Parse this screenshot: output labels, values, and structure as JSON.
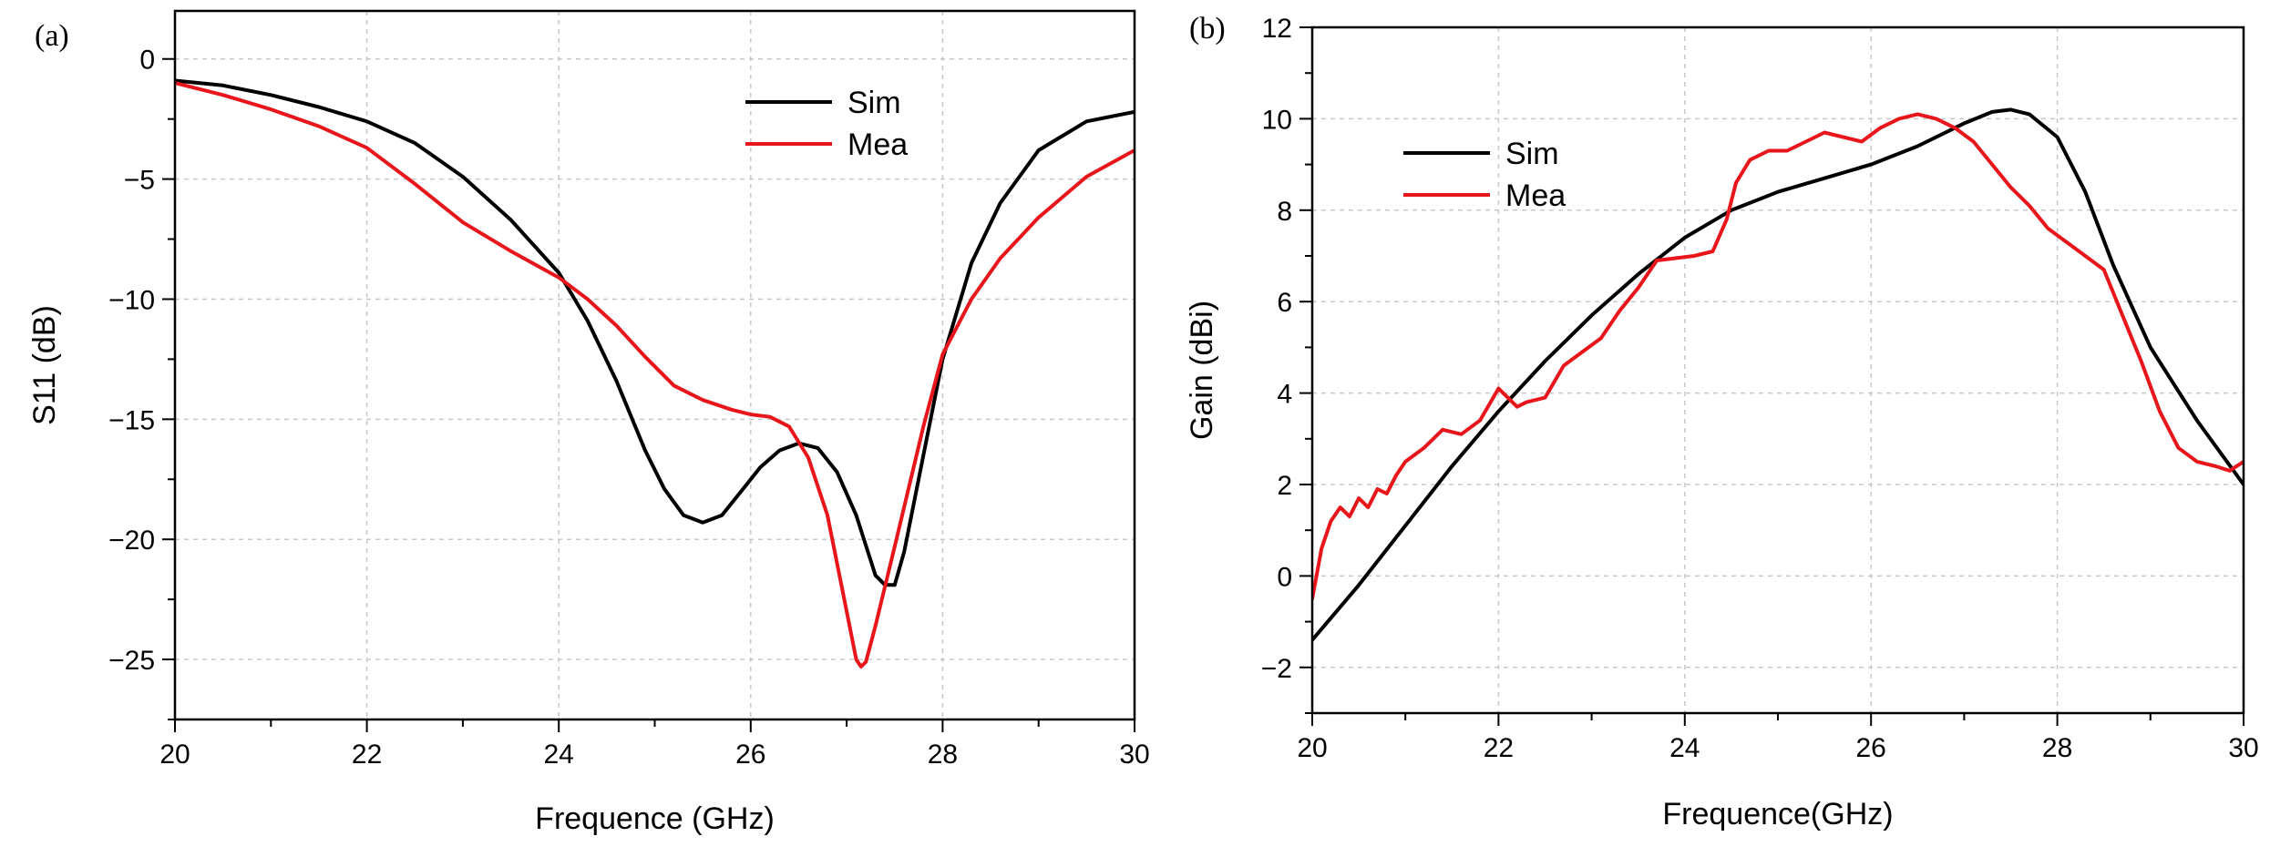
{
  "colors": {
    "sim": "#000000",
    "mea": "#e8161b"
  },
  "chart_data": [
    {
      "type": "line",
      "panel_label": "(a)",
      "xlabel": "Frequence (GHz)",
      "ylabel": "S11 (dB)",
      "xlim": [
        20,
        30
      ],
      "ylim": [
        -27.5,
        2
      ],
      "xticks": [
        20,
        22,
        24,
        26,
        28,
        30
      ],
      "xtick_labels": [
        "20",
        "22",
        "24",
        "26",
        "28",
        "30"
      ],
      "yticks": [
        0,
        -5,
        -10,
        -15,
        -20,
        -25
      ],
      "ytick_labels": [
        "0",
        "−5",
        "−10",
        "−15",
        "−20",
        "−25"
      ],
      "grid": true,
      "legend_position": "top-right",
      "series": [
        {
          "name": "Sim",
          "color": "#000000",
          "x": [
            20,
            20.5,
            21,
            21.5,
            22,
            22.5,
            23,
            23.5,
            24,
            24.3,
            24.6,
            24.9,
            25.1,
            25.3,
            25.5,
            25.7,
            25.9,
            26.1,
            26.3,
            26.5,
            26.7,
            26.9,
            27.1,
            27.3,
            27.4,
            27.5,
            27.6,
            27.8,
            28,
            28.3,
            28.6,
            29,
            29.5,
            30
          ],
          "y": [
            -0.9,
            -1.1,
            -1.5,
            -2.0,
            -2.6,
            -3.5,
            -4.9,
            -6.7,
            -8.9,
            -10.9,
            -13.4,
            -16.3,
            -17.9,
            -19.0,
            -19.3,
            -19.0,
            -18.0,
            -17.0,
            -16.3,
            -16.0,
            -16.2,
            -17.2,
            -19.0,
            -21.5,
            -21.9,
            -21.9,
            -20.5,
            -16.5,
            -12.5,
            -8.5,
            -6.0,
            -3.8,
            -2.6,
            -2.2
          ]
        },
        {
          "name": "Mea",
          "color": "#e8161b",
          "x": [
            20,
            20.5,
            21,
            21.5,
            22,
            22.5,
            23,
            23.5,
            24,
            24.3,
            24.6,
            24.9,
            25.2,
            25.5,
            25.8,
            26,
            26.2,
            26.4,
            26.6,
            26.8,
            27,
            27.1,
            27.15,
            27.2,
            27.3,
            27.5,
            27.8,
            28,
            28.3,
            28.6,
            29,
            29.5,
            30
          ],
          "y": [
            -1.0,
            -1.5,
            -2.1,
            -2.8,
            -3.7,
            -5.2,
            -6.8,
            -8.0,
            -9.1,
            -10.0,
            -11.1,
            -12.4,
            -13.6,
            -14.2,
            -14.6,
            -14.8,
            -14.9,
            -15.3,
            -16.6,
            -19.0,
            -23.0,
            -25.0,
            -25.3,
            -25.1,
            -23.6,
            -20.3,
            -15.3,
            -12.3,
            -10.0,
            -8.3,
            -6.6,
            -4.9,
            -3.8
          ]
        }
      ]
    },
    {
      "type": "line",
      "panel_label": "(b)",
      "xlabel": "Frequence(GHz)",
      "ylabel": "Gain (dBi)",
      "xlim": [
        20,
        30
      ],
      "ylim": [
        -3,
        12
      ],
      "xticks": [
        20,
        22,
        24,
        26,
        28,
        30
      ],
      "xtick_labels": [
        "20",
        "22",
        "24",
        "26",
        "28",
        "30"
      ],
      "yticks": [
        -2,
        0,
        2,
        4,
        6,
        8,
        10,
        12
      ],
      "ytick_labels": [
        "−2",
        "0",
        "2",
        "4",
        "6",
        "8",
        "10",
        "12"
      ],
      "grid": true,
      "legend_position": "top-left",
      "series": [
        {
          "name": "Sim",
          "color": "#000000",
          "x": [
            20,
            20.5,
            21,
            21.5,
            22,
            22.5,
            23,
            23.5,
            24,
            24.5,
            25,
            25.5,
            26,
            26.5,
            27,
            27.3,
            27.5,
            27.7,
            28,
            28.3,
            28.6,
            29,
            29.5,
            30
          ],
          "y": [
            -1.4,
            -0.2,
            1.1,
            2.4,
            3.6,
            4.7,
            5.7,
            6.6,
            7.4,
            8.0,
            8.4,
            8.7,
            9.0,
            9.4,
            9.9,
            10.15,
            10.2,
            10.1,
            9.6,
            8.4,
            6.8,
            5.0,
            3.4,
            2.0
          ]
        },
        {
          "name": "Mea",
          "color": "#e8161b",
          "x": [
            20,
            20.1,
            20.2,
            20.3,
            20.4,
            20.5,
            20.6,
            20.7,
            20.8,
            20.9,
            21,
            21.2,
            21.4,
            21.6,
            21.8,
            22,
            22.1,
            22.2,
            22.3,
            22.5,
            22.7,
            22.9,
            23.1,
            23.3,
            23.5,
            23.7,
            23.9,
            24.1,
            24.3,
            24.45,
            24.55,
            24.7,
            24.9,
            25.1,
            25.3,
            25.5,
            25.7,
            25.9,
            26.1,
            26.3,
            26.5,
            26.7,
            26.9,
            27.1,
            27.3,
            27.5,
            27.7,
            27.9,
            28.1,
            28.3,
            28.5,
            28.7,
            28.9,
            29.1,
            29.3,
            29.5,
            29.7,
            29.85,
            30
          ],
          "y": [
            -0.5,
            0.6,
            1.2,
            1.5,
            1.3,
            1.7,
            1.5,
            1.9,
            1.8,
            2.2,
            2.5,
            2.8,
            3.2,
            3.1,
            3.4,
            4.1,
            3.9,
            3.7,
            3.8,
            3.9,
            4.6,
            4.9,
            5.2,
            5.8,
            6.3,
            6.9,
            6.95,
            7.0,
            7.1,
            7.8,
            8.6,
            9.1,
            9.3,
            9.3,
            9.5,
            9.7,
            9.6,
            9.5,
            9.8,
            10.0,
            10.1,
            10.0,
            9.8,
            9.5,
            9.0,
            8.5,
            8.1,
            7.6,
            7.3,
            7.0,
            6.7,
            5.7,
            4.7,
            3.6,
            2.8,
            2.5,
            2.4,
            2.3,
            2.5
          ]
        }
      ]
    }
  ]
}
